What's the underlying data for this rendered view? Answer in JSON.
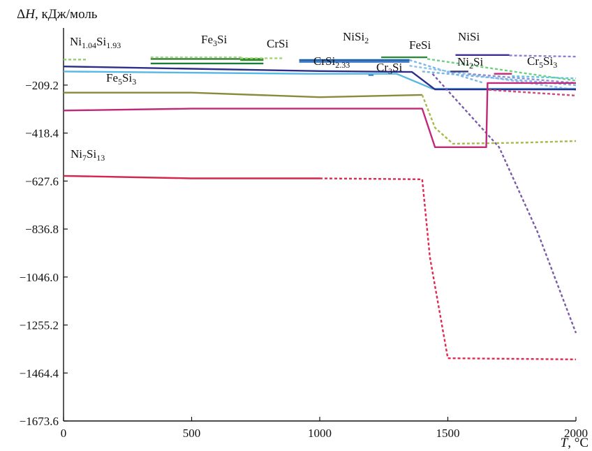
{
  "chart_data": {
    "type": "line",
    "title": "",
    "xlabel": "T, °C",
    "ylabel": "ΔH, кДж/моль",
    "ylabel_parts": {
      "prefix": "Δ",
      "var": "H",
      "rest": ", кДж/моль"
    },
    "xlabel_parts": {
      "var": "T",
      "rest": ", °C"
    },
    "xlim": [
      0,
      2000
    ],
    "ylim": [
      -1673.6,
      40
    ],
    "x_ticks": [
      0,
      500,
      1000,
      1500,
      2000
    ],
    "y_ticks": [
      -209.2,
      -418.4,
      -627.6,
      -836.8,
      -1046.0,
      -1255.2,
      -1464.4,
      -1673.6
    ],
    "x_tick_labels": [
      "0",
      "500",
      "1000",
      "1500",
      "2000"
    ],
    "y_tick_labels": [
      "−209.2",
      "−418.4",
      "−627.6",
      "−836.8",
      "−1046.0",
      "−1255.2",
      "−1464.4",
      "−1673.6"
    ],
    "grid": false,
    "series": [
      {
        "name": "Ni1.04Si1.93",
        "label_parts": [
          [
            "Ni",
            ""
          ],
          [
            "1.04",
            "sub"
          ],
          [
            "Si",
            ""
          ],
          [
            "1.93",
            "sub"
          ]
        ],
        "color": "#3a7d2c",
        "dashed_color": "#8fd06a",
        "points": [
          [
            340,
            -95
          ],
          [
            780,
            -95
          ]
        ],
        "dashed": [
          [
            0,
            -98
          ],
          [
            90,
            -98
          ]
        ]
      },
      {
        "name": "Fe3Si",
        "label_parts": [
          [
            "Fe",
            ""
          ],
          [
            "3",
            "sub"
          ],
          [
            "Si",
            ""
          ]
        ],
        "color": "#1b7a3a",
        "dashed_color": "#9ad88a",
        "points": [
          [
            340,
            -115
          ],
          [
            780,
            -115
          ]
        ],
        "dashed": [
          [
            340,
            -88
          ],
          [
            700,
            -88
          ]
        ]
      },
      {
        "name": "CrSi",
        "label_parts": [
          [
            "CrSi",
            ""
          ]
        ],
        "color": "#2f8f2f",
        "dashed_color": "#9bd76b",
        "points": [
          [
            690,
            -100
          ],
          [
            780,
            -100
          ]
        ],
        "dashed": [
          [
            690,
            -92
          ],
          [
            860,
            -92
          ]
        ]
      },
      {
        "name": "NiSi2",
        "label_parts": [
          [
            "NiSi",
            ""
          ],
          [
            "2",
            "sub"
          ]
        ],
        "color": "#1a5fa8",
        "dashed_color": "#7fb6e8",
        "points": [
          [
            920,
            -100
          ],
          [
            1350,
            -100
          ]
        ],
        "dashed": [
          [
            1350,
            -100
          ],
          [
            1640,
            -200
          ]
        ]
      },
      {
        "name": "FeSi",
        "label_parts": [
          [
            "FeSi",
            ""
          ]
        ],
        "color": "#2a8a3a",
        "dashed_color": "#6fcf7f",
        "points": [
          [
            1240,
            -88
          ],
          [
            1420,
            -88
          ]
        ],
        "dashed": [
          [
            1420,
            -95
          ],
          [
            2000,
            -190
          ]
        ]
      },
      {
        "name": "NiSi",
        "label_parts": [
          [
            "NiSi",
            ""
          ]
        ],
        "color": "#3b2f8f",
        "dashed_color": "#8a7fd8",
        "points": [
          [
            1530,
            -78
          ],
          [
            1740,
            -78
          ]
        ],
        "dashed": [
          [
            1740,
            -80
          ],
          [
            2000,
            -85
          ]
        ]
      },
      {
        "name": "CrSi2.33",
        "label_parts": [
          [
            "CrSi",
            ""
          ],
          [
            "2.33",
            "sub"
          ]
        ],
        "color": "#2f6fbf",
        "dashed_color": "#8ac0ef",
        "points": [
          [
            920,
            -108
          ],
          [
            1350,
            -108
          ]
        ],
        "dashed": [
          [
            1350,
            -125
          ],
          [
            2000,
            -230
          ]
        ]
      },
      {
        "name": "Cr3Si",
        "label_parts": [
          [
            "Cr",
            ""
          ],
          [
            "3",
            "sub"
          ],
          [
            "Si",
            ""
          ]
        ],
        "color": "#2a6fb5",
        "dashed_color": "#78b4e6",
        "points": [
          [
            1190,
            -165
          ],
          [
            1210,
            -165
          ]
        ],
        "dashed": [
          [
            1400,
            -150
          ],
          [
            2000,
            -210
          ]
        ]
      },
      {
        "name": "Ni2Si",
        "label_parts": [
          [
            "Ni",
            ""
          ],
          [
            "2",
            "sub"
          ],
          [
            "Si",
            ""
          ]
        ],
        "color": "#3a3a7a",
        "dashed_color": "#8f8fd0",
        "points": [
          [
            1510,
            -150
          ],
          [
            1580,
            -150
          ]
        ],
        "dashed": [
          [
            1580,
            -160
          ],
          [
            2000,
            -200
          ]
        ]
      },
      {
        "name": "Cr5Si3",
        "label_parts": [
          [
            "Cr",
            ""
          ],
          [
            "5",
            "sub"
          ],
          [
            "Si",
            ""
          ],
          [
            "3",
            "sub"
          ]
        ],
        "color": "#c0287a",
        "dashed_color": "#5cc6e0",
        "points": [
          [
            1680,
            -160
          ],
          [
            1750,
            -160
          ]
        ],
        "dashed": [
          [
            1750,
            -170
          ],
          [
            2000,
            -180
          ]
        ]
      },
      {
        "name": "Fe5Si3",
        "label_parts": [
          [
            "Fe",
            ""
          ],
          [
            "5",
            "sub"
          ],
          [
            "Si",
            ""
          ],
          [
            "3",
            "sub"
          ]
        ],
        "color": "#55b8e6",
        "dashed_color": "#a9dcf2",
        "points": [
          [
            0,
            -150
          ],
          [
            960,
            -160
          ],
          [
            1300,
            -160
          ],
          [
            1440,
            -225
          ],
          [
            2000,
            -225
          ]
        ],
        "dashed": []
      },
      {
        "name": "",
        "label_parts": [],
        "color": "#2d2d8a",
        "dashed_color": "#7a5aa8",
        "points": [
          [
            0,
            -128
          ],
          [
            500,
            -138
          ],
          [
            1000,
            -148
          ],
          [
            1360,
            -152
          ],
          [
            1450,
            -228
          ],
          [
            2000,
            -228
          ]
        ],
        "dashed": [
          [
            1440,
            -160
          ],
          [
            1700,
            -480
          ],
          [
            1850,
            -850
          ],
          [
            2000,
            -1290
          ]
        ]
      },
      {
        "name": "",
        "label_parts": [],
        "color": "#8a8a3a",
        "dashed_color": "#a8b84a",
        "points": [
          [
            0,
            -242
          ],
          [
            500,
            -242
          ],
          [
            1000,
            -262
          ],
          [
            1400,
            -252
          ]
        ],
        "dashed": [
          [
            1400,
            -252
          ],
          [
            1450,
            -395
          ],
          [
            1520,
            -465
          ],
          [
            1800,
            -460
          ],
          [
            2000,
            -453
          ]
        ]
      },
      {
        "name": "",
        "label_parts": [],
        "color": "#c0287a",
        "dashed_color": "#d04a7a",
        "points": [
          [
            0,
            -320
          ],
          [
            500,
            -312
          ],
          [
            1000,
            -312
          ],
          [
            1400,
            -312
          ],
          [
            1450,
            -480
          ],
          [
            1650,
            -480
          ],
          [
            1655,
            -200
          ],
          [
            2000,
            -200
          ]
        ],
        "dashed": [
          [
            1660,
            -230
          ],
          [
            2000,
            -255
          ]
        ]
      },
      {
        "name": "Ni7Si13",
        "label_parts": [
          [
            "Ni",
            ""
          ],
          [
            "7",
            "sub"
          ],
          [
            "Si",
            ""
          ],
          [
            "13",
            "sub"
          ]
        ],
        "color": "#d2264a",
        "dashed_color": "#e0294f",
        "points": [
          [
            0,
            -605
          ],
          [
            500,
            -616
          ],
          [
            1000,
            -616
          ]
        ],
        "dashed": [
          [
            1000,
            -616
          ],
          [
            1400,
            -620
          ],
          [
            1430,
            -960
          ],
          [
            1500,
            -1400
          ],
          [
            2000,
            -1405
          ]
        ]
      }
    ]
  }
}
